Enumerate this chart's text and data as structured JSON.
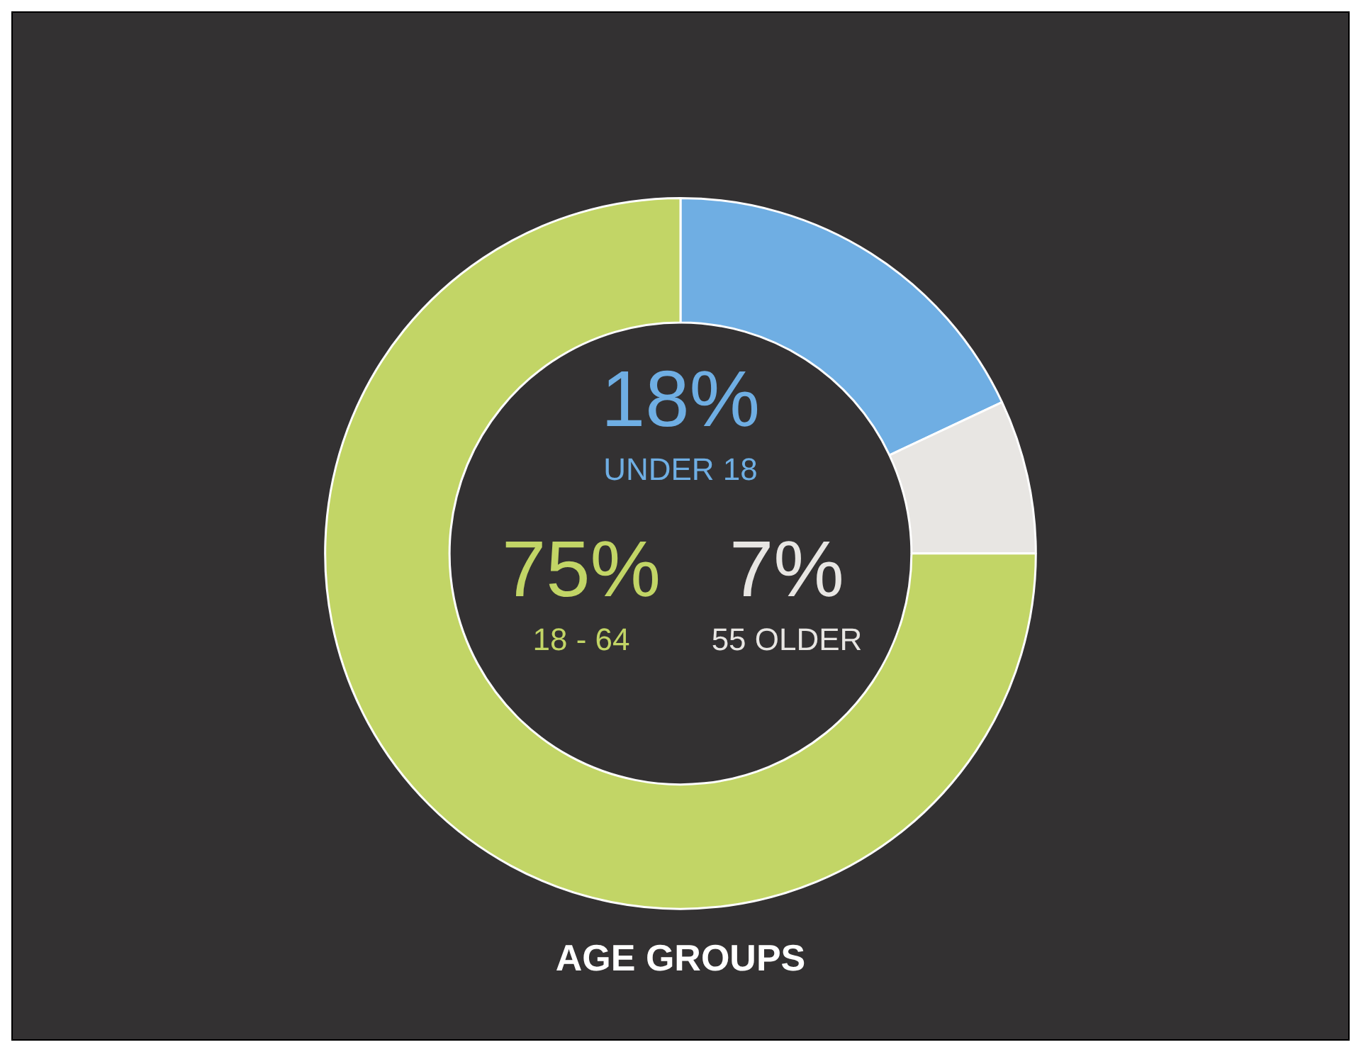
{
  "chart_data": {
    "type": "donut",
    "title": "AGE GROUPS",
    "categories": [
      "UNDER 18",
      "55 OLDER",
      "18 - 64"
    ],
    "values": [
      18,
      7,
      75
    ],
    "colors": [
      "#6faee3",
      "#e8e6e3",
      "#c2d566"
    ],
    "value_labels": [
      "18%",
      "7%",
      "75%"
    ],
    "legend": false
  }
}
